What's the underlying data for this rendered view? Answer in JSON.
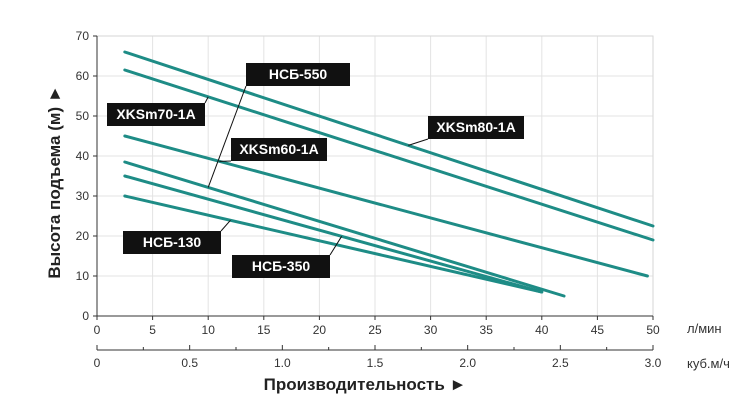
{
  "chart_data": {
    "type": "line",
    "ylabel": "Высота подъема (м) ►",
    "xlabel": "Производительность ►",
    "x_unit": "л/мин",
    "x2_unit": "куб.м/ч",
    "xlim": [
      0,
      50
    ],
    "ylim": [
      0,
      70
    ],
    "x_ticks": [
      0,
      5,
      10,
      15,
      20,
      25,
      30,
      35,
      40,
      45,
      50
    ],
    "y_ticks": [
      0,
      10,
      20,
      30,
      40,
      50,
      60,
      70
    ],
    "x2_ticks": [
      "0",
      "0.5",
      "1.0",
      "1.5",
      "2.0",
      "2.5",
      "3.0"
    ],
    "x2_max": 3.0,
    "grid": true,
    "line_color": "#1e8c86",
    "series": [
      {
        "name": "XKSm80-1A",
        "x": [
          2.5,
          50
        ],
        "y": [
          66,
          22.5
        ]
      },
      {
        "name": "XKSm70-1A",
        "x": [
          2.5,
          50
        ],
        "y": [
          61.5,
          19
        ]
      },
      {
        "name": "XKSm60-1A",
        "x": [
          2.5,
          49.5
        ],
        "y": [
          45,
          10
        ]
      },
      {
        "name": "НСБ-550",
        "x": [
          2.5,
          42
        ],
        "y": [
          38.5,
          5
        ]
      },
      {
        "name": "НСБ-350",
        "x": [
          2.5,
          40
        ],
        "y": [
          35,
          6
        ]
      },
      {
        "name": "НСБ-130",
        "x": [
          2.5,
          40
        ],
        "y": [
          30,
          6
        ]
      }
    ]
  }
}
